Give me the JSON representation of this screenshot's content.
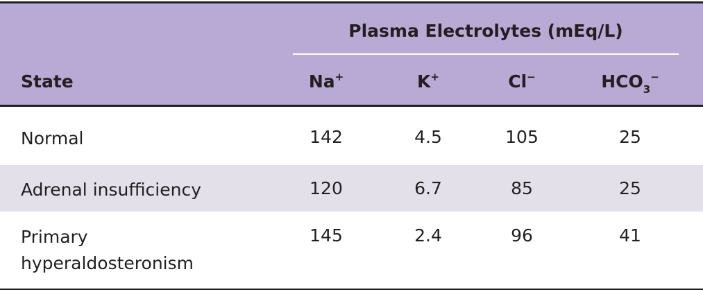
{
  "table": {
    "header": {
      "state": "State",
      "group": "Plasma Electrolytes (mEq/L)",
      "columns": [
        {
          "base": "Na",
          "sup": "+"
        },
        {
          "base": "K",
          "sup": "+"
        },
        {
          "base": "Cl",
          "sup": "−"
        },
        {
          "base": "HCO",
          "sub": "3",
          "sup": "−"
        }
      ]
    },
    "rows": [
      [
        "Normal",
        142,
        4.5,
        105,
        25
      ],
      [
        "Adrenal insufficiency",
        120,
        6.7,
        85,
        25
      ],
      [
        "Primary hyperaldosteronism",
        145,
        2.4,
        96,
        41
      ]
    ]
  }
}
